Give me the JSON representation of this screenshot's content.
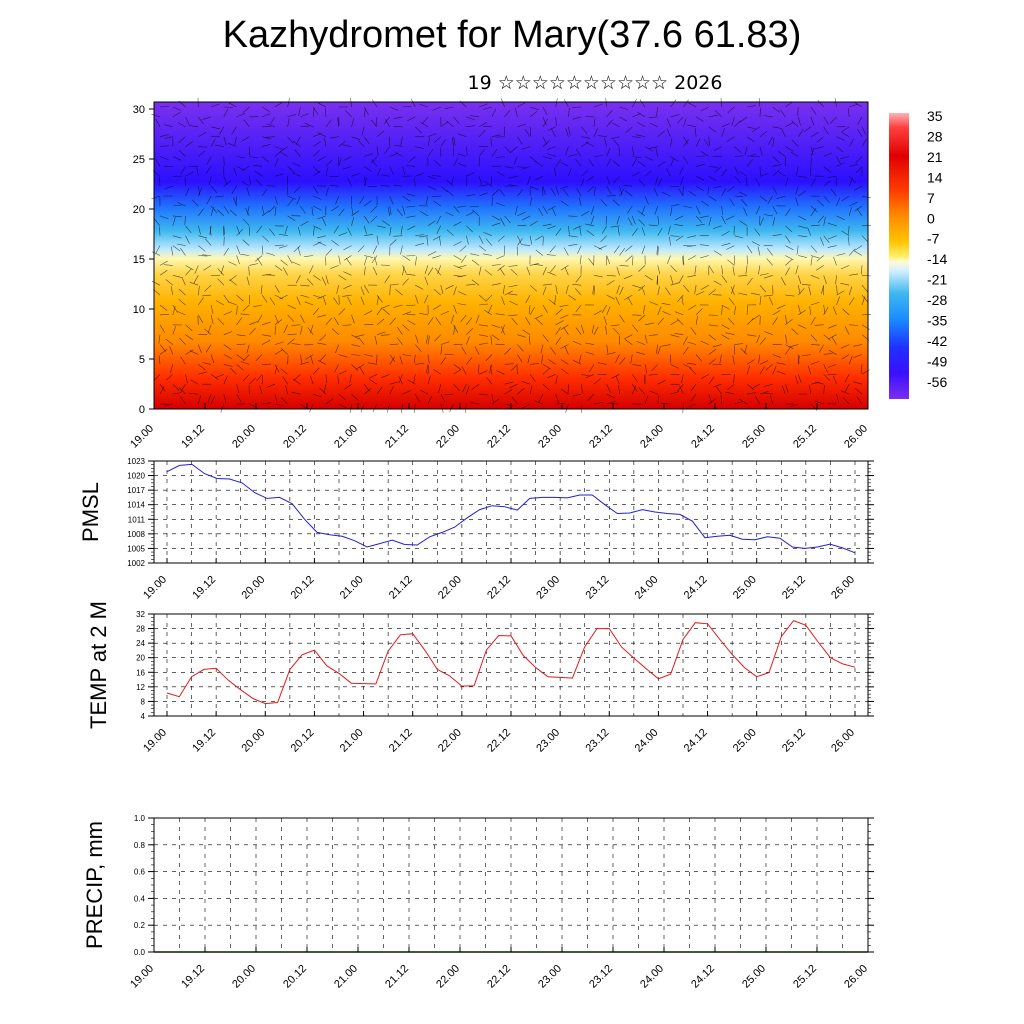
{
  "title": "Kazhydromet for Mary(37.6 61.83)",
  "subtitle": "19 ☆☆☆☆☆☆☆☆☆☆ 2026",
  "colors": {
    "pmsl_line": "#1f1fd6",
    "temp_line": "#e01b1b",
    "grid": "#000000"
  },
  "chart_data": [
    {
      "id": "cross-section",
      "type": "heatmap",
      "title": "",
      "x_ticks": [
        "19.00",
        "19.12",
        "20.00",
        "20.12",
        "21.00",
        "21.12",
        "22.00",
        "22.12",
        "23.00",
        "23.12",
        "24.00",
        "24.12",
        "25.00",
        "25.12",
        "26.00"
      ],
      "y_ticks": [
        0,
        5,
        10,
        15,
        20,
        25,
        30
      ],
      "ylim": [
        0,
        30.7
      ],
      "colorbar_labels": [
        "35",
        "28",
        "21",
        "14",
        "7",
        "0",
        "-7",
        "-14",
        "-21",
        "-28",
        "-35",
        "-42",
        "-49",
        "-56"
      ],
      "colorbar_range": [
        -63,
        42
      ],
      "temperature_profile_by_level": [
        {
          "level": 0,
          "value": 26
        },
        {
          "level": 3,
          "value": 24
        },
        {
          "level": 6,
          "value": 18
        },
        {
          "level": 9,
          "value": 10
        },
        {
          "level": 12,
          "value": 2
        },
        {
          "level": 14,
          "value": -6
        },
        {
          "level": 16,
          "value": -16
        },
        {
          "level": 18,
          "value": -28
        },
        {
          "level": 20,
          "value": -40
        },
        {
          "level": 22,
          "value": -55
        },
        {
          "level": 25,
          "value": -60
        },
        {
          "level": 30.7,
          "value": -57
        }
      ],
      "overlay": "wind barbs"
    },
    {
      "id": "pmsl",
      "type": "line",
      "ylabel": "PMSL",
      "ylim": [
        1002,
        1023
      ],
      "y_ticks": [
        1002,
        1005,
        1008,
        1011,
        1014,
        1017,
        1020,
        1023
      ],
      "x_ticks": [
        "19.00",
        "19.12",
        "20.00",
        "20.12",
        "21.00",
        "21.12",
        "22.00",
        "22.12",
        "23.00",
        "23.12",
        "24.00",
        "24.12",
        "25.00",
        "25.12",
        "26.00"
      ],
      "series": [
        {
          "name": "PMSL",
          "values": [
            1020.8,
            1022.1,
            1022.3,
            1020.4,
            1019.4,
            1019.3,
            1018.5,
            1016.5,
            1015.3,
            1015.5,
            1014.2,
            1011.0,
            1008.3,
            1007.8,
            1007.5,
            1006.6,
            1005.3,
            1006.0,
            1006.7,
            1005.8,
            1005.7,
            1007.4,
            1008.3,
            1009.4,
            1011.3,
            1013.0,
            1013.8,
            1013.6,
            1012.9,
            1015.3,
            1015.5,
            1015.5,
            1015.4,
            1016.0,
            1016.0,
            1014.0,
            1012.2,
            1012.3,
            1013.0,
            1012.5,
            1012.2,
            1012.0,
            1010.6,
            1007.2,
            1007.5,
            1007.7,
            1006.9,
            1006.8,
            1007.4,
            1007.1,
            1005.3,
            1005.0,
            1005.3,
            1005.9,
            1005.1,
            1004.1
          ]
        }
      ]
    },
    {
      "id": "temp2m",
      "type": "line",
      "ylabel": "TEMP at 2 M",
      "ylim": [
        4,
        32
      ],
      "y_ticks": [
        4,
        8,
        12,
        16,
        20,
        24,
        28,
        32
      ],
      "x_ticks": [
        "19.00",
        "19.12",
        "20.00",
        "20.12",
        "21.00",
        "21.12",
        "22.00",
        "22.12",
        "23.00",
        "23.12",
        "24.00",
        "24.12",
        "25.00",
        "25.12",
        "26.00"
      ],
      "series": [
        {
          "name": "T2M",
          "values": [
            10.3,
            9.3,
            14.8,
            16.8,
            17.1,
            13.8,
            11.2,
            8.8,
            7.4,
            7.7,
            16.8,
            20.8,
            22.1,
            17.8,
            15.7,
            13.0,
            12.9,
            12.8,
            21.8,
            26.3,
            26.6,
            22.0,
            16.8,
            15.0,
            12.2,
            12.3,
            22.1,
            26.1,
            26.0,
            20.6,
            17.3,
            14.8,
            14.6,
            14.4,
            23.0,
            28.0,
            28.0,
            22.9,
            19.9,
            17.0,
            14.2,
            15.5,
            25.0,
            29.6,
            29.3,
            25.0,
            20.9,
            17.3,
            14.8,
            15.9,
            25.8,
            30.2,
            28.9,
            24.3,
            20.0,
            18.3,
            17.4
          ]
        }
      ]
    },
    {
      "id": "precip",
      "type": "line",
      "ylabel": "PRECIP, mm",
      "ylim": [
        0,
        1.0
      ],
      "y_ticks": [
        "0.0",
        "0.2",
        "0.4",
        "0.6",
        "0.8",
        "1.0"
      ],
      "x_ticks": [
        "19.00",
        "19.12",
        "20.00",
        "20.12",
        "21.00",
        "21.12",
        "22.00",
        "22.12",
        "23.00",
        "23.12",
        "24.00",
        "24.12",
        "25.00",
        "25.12",
        "26.00"
      ],
      "series": [
        {
          "name": "PRECIP",
          "values": [
            0,
            0,
            0,
            0,
            0,
            0,
            0,
            0,
            0,
            0,
            0,
            0,
            0,
            0,
            0
          ]
        }
      ]
    }
  ]
}
